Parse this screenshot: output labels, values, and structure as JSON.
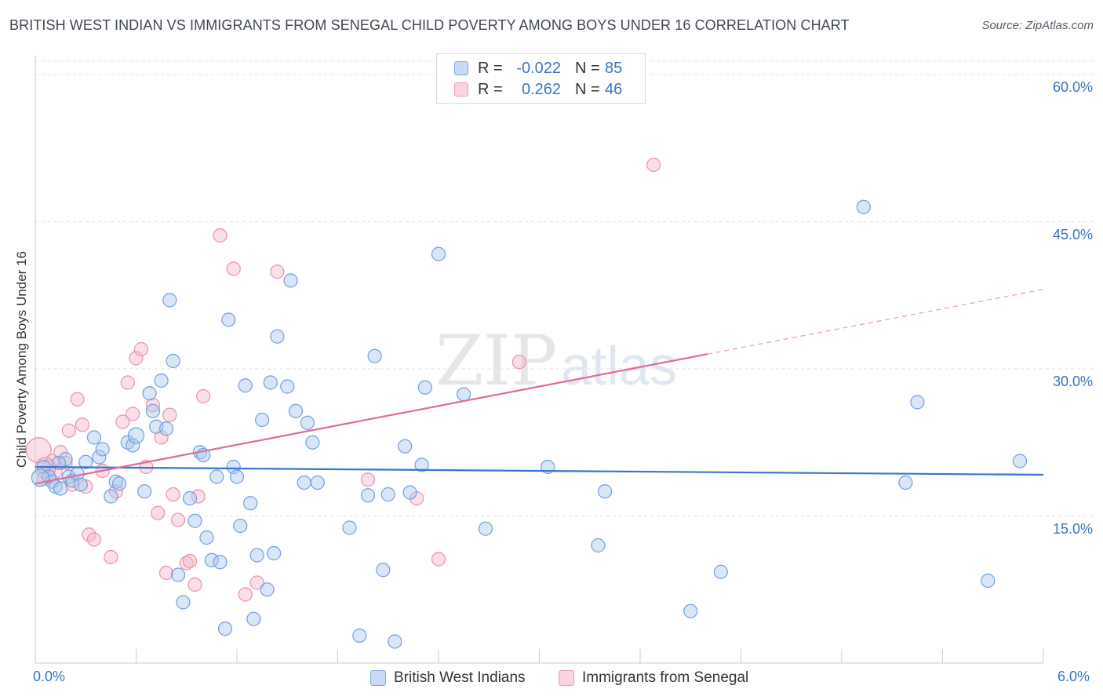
{
  "title": "BRITISH WEST INDIAN VS IMMIGRANTS FROM SENEGAL CHILD POVERTY AMONG BOYS UNDER 16 CORRELATION CHART",
  "source": "Source: ZipAtlas.com",
  "watermark": {
    "zip": "ZIP",
    "atlas": "atlas"
  },
  "legend": {
    "rows": [
      {
        "r_label": "R =",
        "r_value": "-0.022",
        "n_label": "N =",
        "n_value": "85",
        "color": "#a9c8ef"
      },
      {
        "r_label": "R =",
        "r_value": "0.262",
        "n_label": "N =",
        "n_value": "46",
        "color": "#f6b9cc"
      }
    ]
  },
  "bottom_legend": {
    "series1": "British West Indians",
    "series2": "Immigrants from Senegal"
  },
  "axes": {
    "ylabel": "Child Poverty Among Boys Under 16",
    "x_min_label": "0.0%",
    "x_max_label": "6.0%",
    "y_ticks": [
      "15.0%",
      "30.0%",
      "45.0%",
      "60.0%"
    ]
  },
  "colors": {
    "blue_fill": "#a9c8ef",
    "blue_stroke": "#6f9fdc",
    "blue_line": "#3577cc",
    "pink_fill": "#f6b9cc",
    "pink_stroke": "#e891ac",
    "pink_line": "#e06b96",
    "grid": "#dde1e6",
    "tick_label": "#3b73c4"
  },
  "chart_data": {
    "type": "scatter",
    "title": "BRITISH WEST INDIAN VS IMMIGRANTS FROM SENEGAL CHILD POVERTY AMONG BOYS UNDER 16 CORRELATION CHART",
    "xlabel": "",
    "ylabel": "Child Poverty Among Boys Under 16",
    "xlim": [
      0,
      6
    ],
    "ylim": [
      0,
      62
    ],
    "y_ticks": [
      15,
      30,
      45,
      60
    ],
    "grid": true,
    "legend_position": "top-center",
    "series": [
      {
        "name": "British West Indians",
        "r": -0.022,
        "n": 85,
        "trend": {
          "x": [
            0.0,
            6.0
          ],
          "y": [
            20.0,
            19.2
          ]
        },
        "points": [
          [
            0.05,
            20.0
          ],
          [
            0.08,
            19.0
          ],
          [
            0.1,
            18.5
          ],
          [
            0.12,
            18.0
          ],
          [
            0.15,
            17.8
          ],
          [
            0.18,
            20.8
          ],
          [
            0.2,
            19.0
          ],
          [
            0.22,
            18.6
          ],
          [
            0.25,
            19.3
          ],
          [
            0.27,
            18.2
          ],
          [
            0.3,
            20.5
          ],
          [
            0.35,
            23.0
          ],
          [
            0.38,
            21.0
          ],
          [
            0.4,
            21.8
          ],
          [
            0.45,
            17.0
          ],
          [
            0.48,
            18.5
          ],
          [
            0.5,
            18.3
          ],
          [
            0.55,
            22.5
          ],
          [
            0.58,
            22.2
          ],
          [
            0.6,
            23.2
          ],
          [
            0.65,
            17.5
          ],
          [
            0.68,
            27.5
          ],
          [
            0.7,
            25.7
          ],
          [
            0.72,
            24.1
          ],
          [
            0.75,
            28.8
          ],
          [
            0.78,
            23.9
          ],
          [
            0.8,
            37.0
          ],
          [
            0.82,
            30.8
          ],
          [
            0.85,
            9.0
          ],
          [
            0.88,
            6.2
          ],
          [
            0.92,
            16.8
          ],
          [
            0.95,
            14.5
          ],
          [
            0.98,
            21.5
          ],
          [
            1.0,
            21.2
          ],
          [
            1.02,
            12.8
          ],
          [
            1.05,
            10.5
          ],
          [
            1.08,
            19.0
          ],
          [
            1.1,
            10.3
          ],
          [
            1.13,
            3.5
          ],
          [
            1.15,
            35.0
          ],
          [
            1.18,
            20.0
          ],
          [
            1.2,
            19.0
          ],
          [
            1.22,
            14.0
          ],
          [
            1.25,
            28.3
          ],
          [
            1.28,
            16.3
          ],
          [
            1.3,
            4.5
          ],
          [
            1.32,
            11.0
          ],
          [
            1.35,
            24.8
          ],
          [
            1.38,
            7.5
          ],
          [
            1.4,
            28.6
          ],
          [
            1.42,
            11.2
          ],
          [
            1.44,
            33.3
          ],
          [
            1.5,
            28.2
          ],
          [
            1.52,
            39.0
          ],
          [
            1.55,
            25.7
          ],
          [
            1.6,
            18.4
          ],
          [
            1.62,
            24.5
          ],
          [
            1.65,
            22.5
          ],
          [
            1.68,
            18.4
          ],
          [
            1.87,
            13.8
          ],
          [
            1.93,
            2.8
          ],
          [
            1.98,
            17.1
          ],
          [
            2.02,
            31.3
          ],
          [
            2.07,
            9.5
          ],
          [
            2.1,
            17.2
          ],
          [
            2.14,
            2.2
          ],
          [
            2.2,
            22.1
          ],
          [
            2.23,
            17.4
          ],
          [
            2.3,
            20.2
          ],
          [
            2.32,
            28.1
          ],
          [
            2.4,
            41.7
          ],
          [
            2.55,
            27.4
          ],
          [
            2.68,
            13.7
          ],
          [
            3.05,
            20.0
          ],
          [
            3.35,
            12.0
          ],
          [
            3.39,
            17.5
          ],
          [
            3.9,
            5.3
          ],
          [
            4.08,
            9.3
          ],
          [
            4.93,
            46.5
          ],
          [
            5.18,
            18.4
          ],
          [
            5.25,
            26.6
          ],
          [
            5.67,
            8.4
          ],
          [
            5.86,
            20.6
          ],
          [
            0.03,
            18.9
          ],
          [
            0.14,
            20.4
          ]
        ]
      },
      {
        "name": "Immigrants from Senegal",
        "r": 0.262,
        "n": 46,
        "trend": {
          "x": [
            0.0,
            4.0
          ],
          "y": [
            18.3,
            31.5
          ]
        },
        "trend_dashed": {
          "x": [
            4.0,
            6.0
          ],
          "y": [
            31.5,
            38.1
          ]
        },
        "points": [
          [
            0.02,
            21.7
          ],
          [
            0.05,
            18.8
          ],
          [
            0.08,
            20.0
          ],
          [
            0.1,
            20.6
          ],
          [
            0.12,
            19.5
          ],
          [
            0.15,
            21.5
          ],
          [
            0.18,
            20.4
          ],
          [
            0.2,
            23.7
          ],
          [
            0.22,
            18.2
          ],
          [
            0.25,
            26.9
          ],
          [
            0.28,
            24.3
          ],
          [
            0.3,
            18.0
          ],
          [
            0.32,
            13.1
          ],
          [
            0.35,
            12.6
          ],
          [
            0.4,
            19.6
          ],
          [
            0.45,
            10.8
          ],
          [
            0.48,
            17.5
          ],
          [
            0.52,
            24.6
          ],
          [
            0.55,
            28.6
          ],
          [
            0.58,
            25.4
          ],
          [
            0.6,
            31.1
          ],
          [
            0.63,
            32.0
          ],
          [
            0.66,
            20.0
          ],
          [
            0.7,
            26.3
          ],
          [
            0.73,
            15.3
          ],
          [
            0.75,
            23.0
          ],
          [
            0.78,
            9.2
          ],
          [
            0.8,
            25.3
          ],
          [
            0.82,
            17.2
          ],
          [
            0.85,
            14.6
          ],
          [
            0.9,
            10.2
          ],
          [
            0.92,
            10.4
          ],
          [
            0.95,
            8.0
          ],
          [
            0.97,
            17.0
          ],
          [
            1.0,
            27.2
          ],
          [
            1.1,
            43.6
          ],
          [
            1.18,
            40.2
          ],
          [
            1.25,
            7.0
          ],
          [
            1.32,
            8.2
          ],
          [
            1.44,
            39.9
          ],
          [
            1.98,
            18.7
          ],
          [
            2.27,
            16.8
          ],
          [
            2.4,
            10.6
          ],
          [
            2.88,
            30.7
          ],
          [
            3.68,
            50.8
          ],
          [
            0.06,
            19.9
          ]
        ]
      }
    ]
  }
}
